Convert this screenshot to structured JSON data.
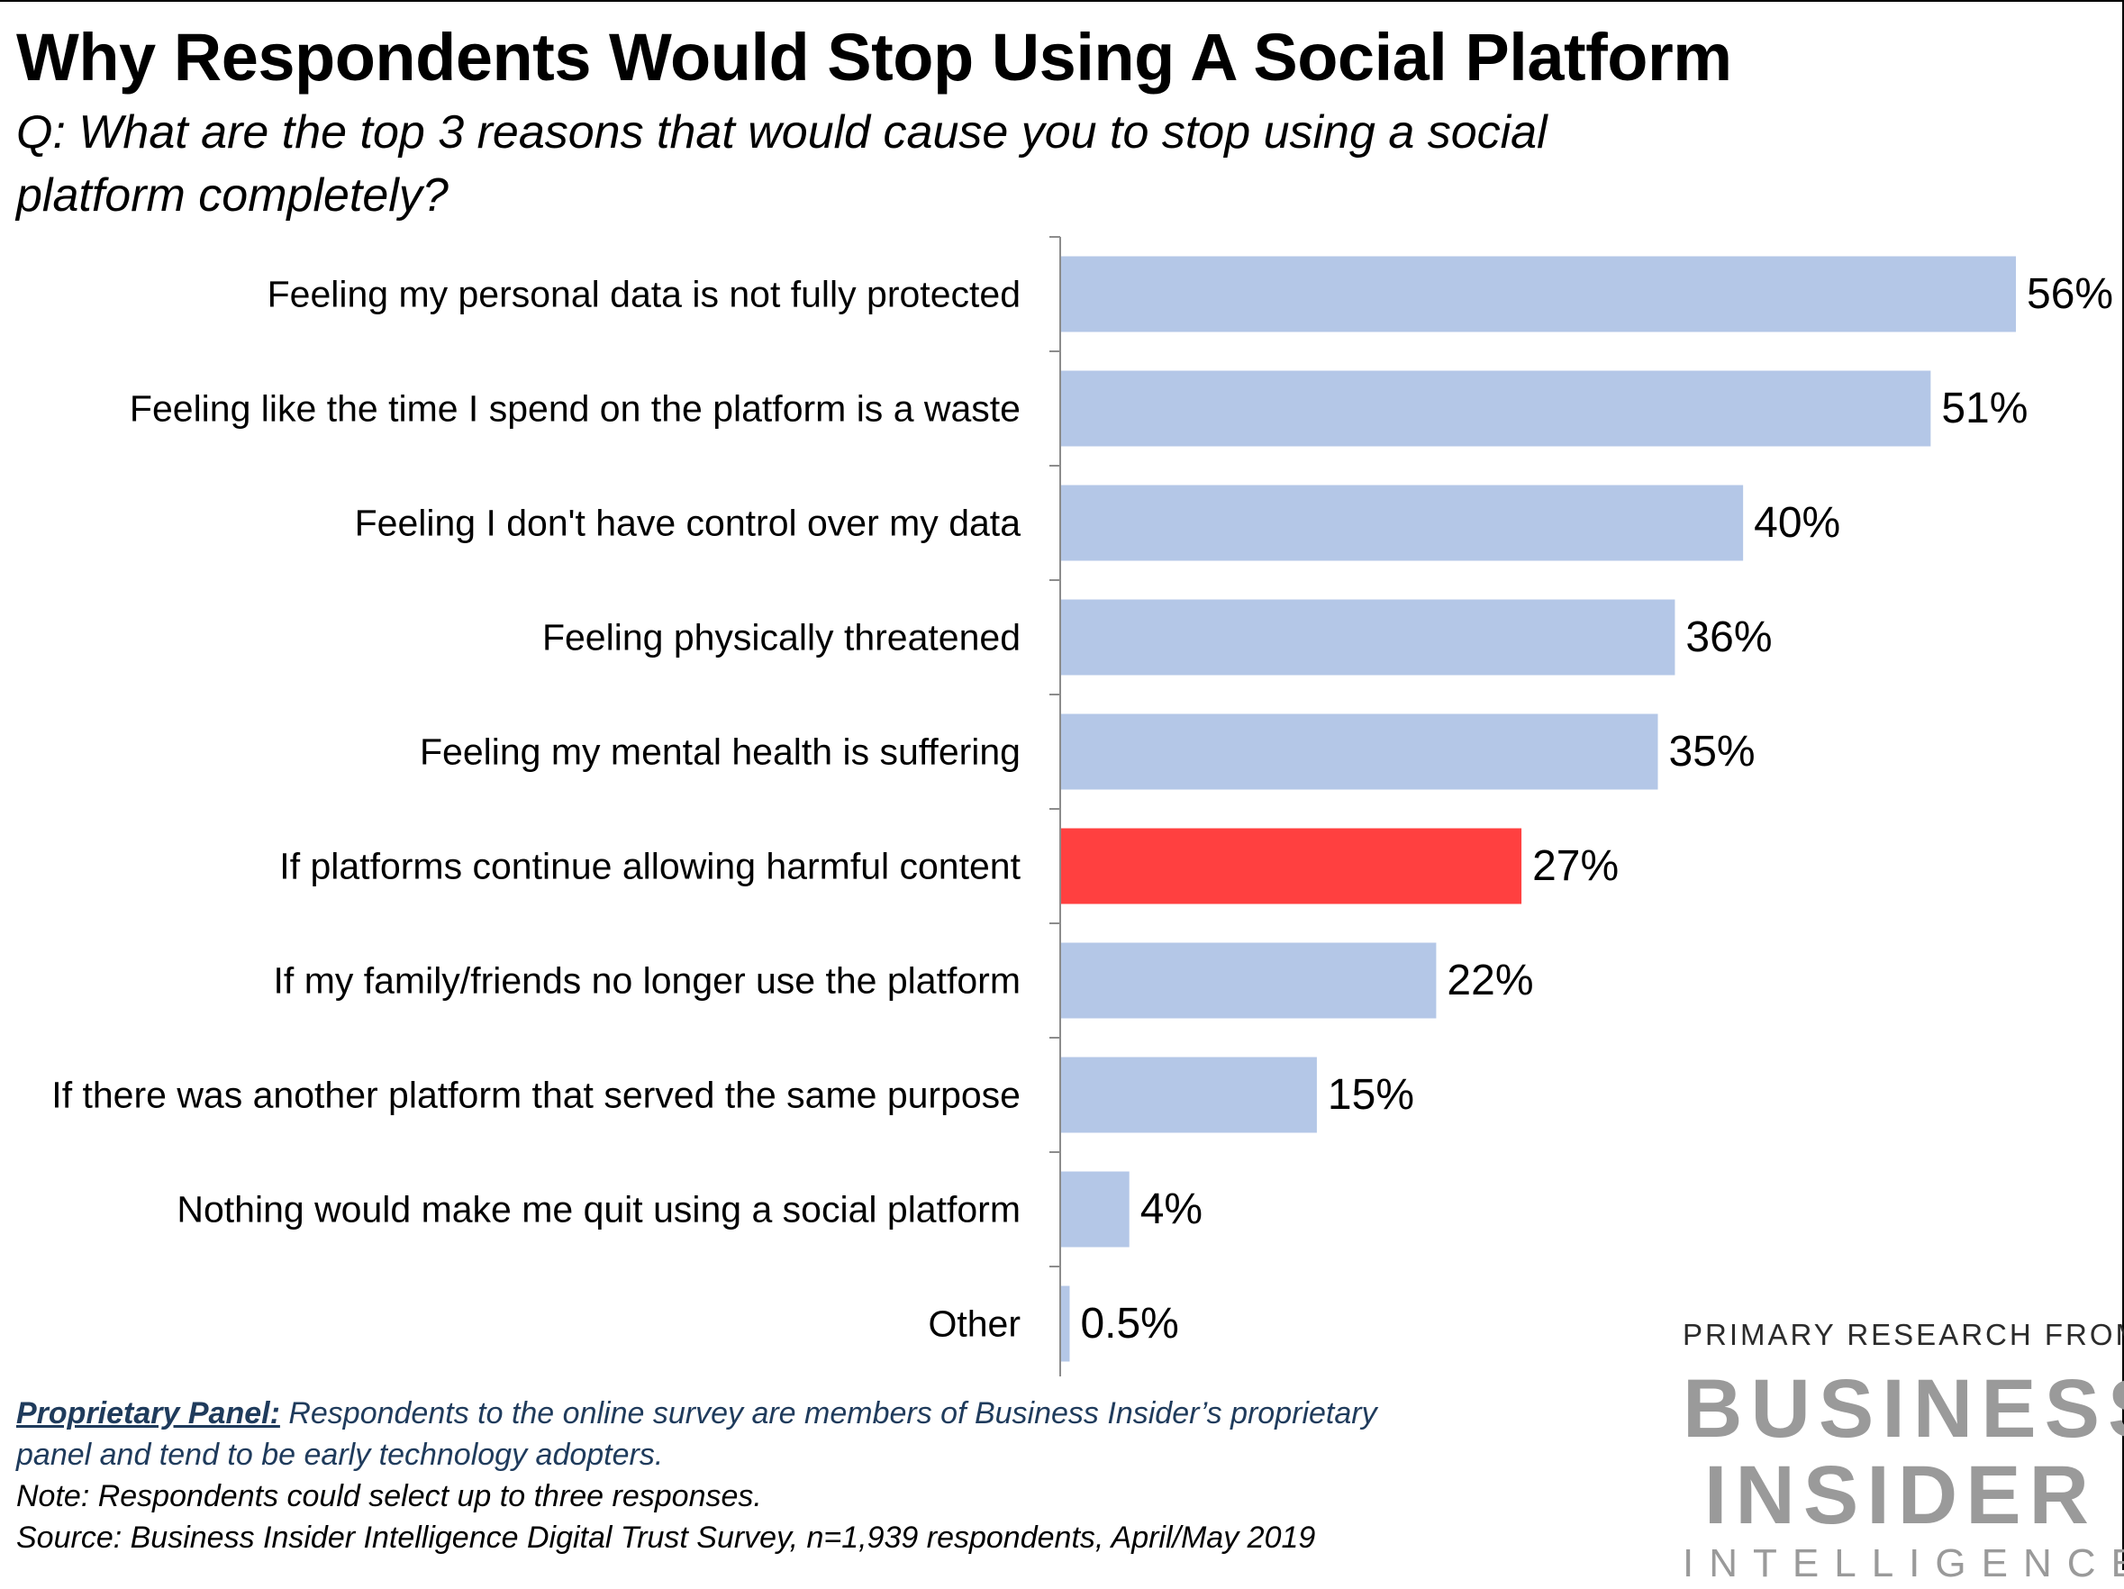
{
  "title": "Why Respondents Would Stop Using A Social Platform",
  "subtitle": "Q: What are the top 3 reasons that would cause you to stop using a social platform completely?",
  "chart_data": {
    "type": "bar",
    "orientation": "horizontal",
    "categories": [
      "Feeling my personal data is not fully protected",
      "Feeling like the time I spend on the platform is a waste",
      "Feeling I don't have control over my data",
      "Feeling physically threatened",
      "Feeling my mental health is suffering",
      "If platforms continue allowing harmful content",
      "If my family/friends no longer use the platform",
      "If there was another platform that served the same purpose",
      "Nothing would make me quit using a social platform",
      "Other"
    ],
    "values": [
      56,
      51,
      40,
      36,
      35,
      27,
      22,
      15,
      4,
      0.5
    ],
    "value_labels": [
      "56%",
      "51%",
      "40%",
      "36%",
      "35%",
      "27%",
      "22%",
      "15%",
      "4%",
      "0.5%"
    ],
    "colors": {
      "default": "#b4c7e7",
      "highlight": "#ff4040",
      "highlight_index": 5
    },
    "xlim": [
      0,
      56
    ],
    "grid": false,
    "legend": "none"
  },
  "footer": {
    "panel_heading": "Proprietary Panel:",
    "panel_text_1": " Respondents to the online survey are members of Business Insider’s proprietary",
    "panel_text_2": "panel and tend to be early technology adopters.",
    "note": "Note: Respondents could select up to three responses.",
    "source": "Source: Business Insider Intelligence Digital Trust Survey, n=1,939 respondents, April/May 2019"
  },
  "brand": {
    "kicker": "PRIMARY RESEARCH FROM",
    "line1": "BUSINESS",
    "line2": "INSIDER",
    "line3": "INTELLIGENCE"
  }
}
